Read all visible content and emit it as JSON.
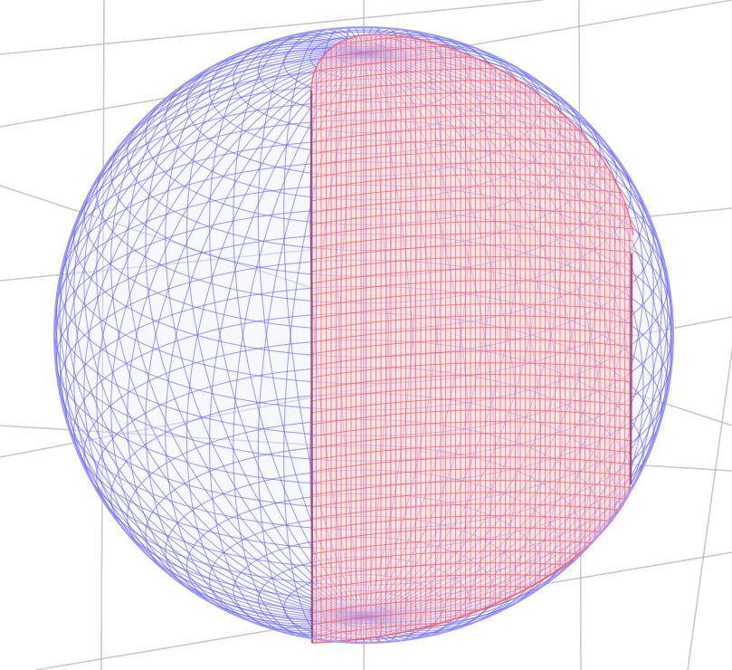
{
  "scene": {
    "kind": "3d-wireframe-render",
    "background_color": "#ffffff",
    "grid_color": "#b4b4b4",
    "surfaces": [
      {
        "id": "sphere",
        "shape": "sphere-wireframe-mesh",
        "stroke_color": "#5a5aff",
        "fill_color": "#eeeeff",
        "rim_color": "#9c9cff"
      },
      {
        "id": "cylinder",
        "shape": "vertical-cylinder-clipped-by-sphere",
        "stroke_color": "#ff4f4f",
        "fill_color": "#ffd7d7",
        "edge_color": "#8f3a6a"
      }
    ]
  }
}
